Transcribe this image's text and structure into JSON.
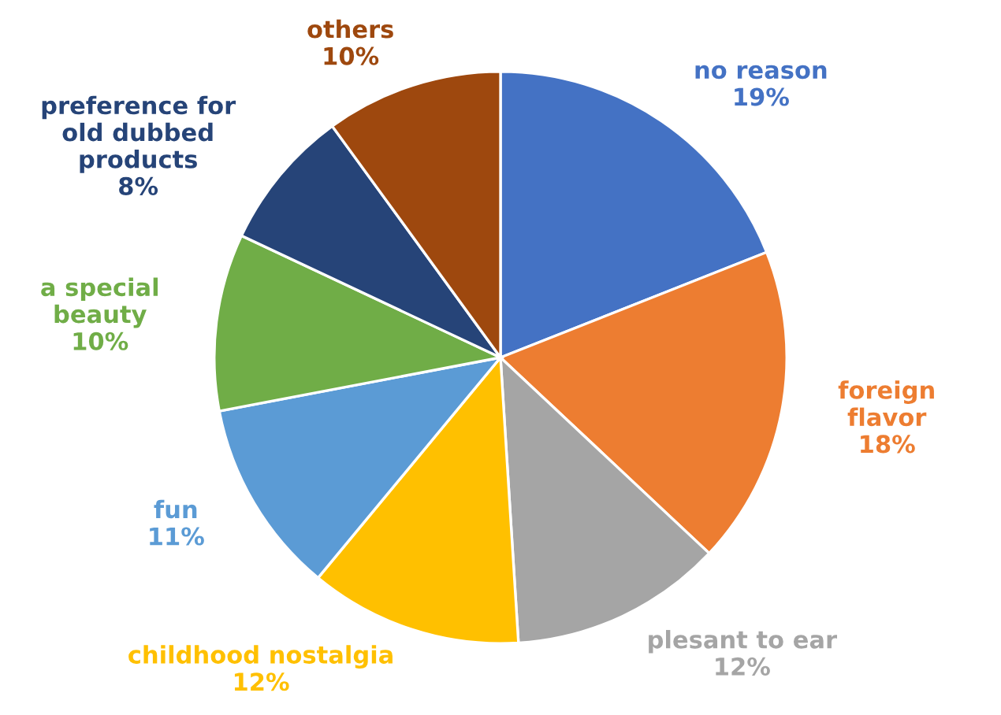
{
  "chart_data": {
    "type": "pie",
    "categories": [
      "no reason",
      "foreign flavor",
      "plesant to ear",
      "childhood nostalgia",
      "fun",
      "a special beauty",
      "preference for old dubbed products",
      "others"
    ],
    "values": [
      19,
      18,
      12,
      12,
      11,
      10,
      8,
      10
    ],
    "value_labels": [
      "19%",
      "18%",
      "12%",
      "12%",
      "11%",
      "10%",
      "8%",
      "10%"
    ],
    "colors": [
      "#4472c4",
      "#ed7d31",
      "#a5a5a5",
      "#ffc000",
      "#5b9bd5",
      "#70ad47",
      "#264478",
      "#9e480e"
    ],
    "legend": false
  }
}
